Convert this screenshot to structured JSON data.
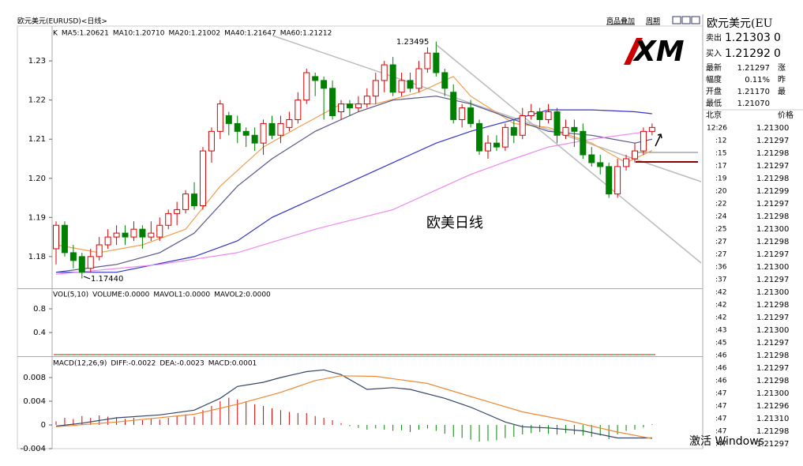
{
  "window": {
    "title": "欧元美元(EURUSD)<日线>",
    "links": [
      "商品叠加",
      "周期"
    ],
    "watermark": "激活 Windows",
    "logo_text": "XM"
  },
  "main_chart": {
    "legend": [
      {
        "text": "K",
        "color": "#000000"
      },
      {
        "text": "MA5:1.20621",
        "color": "#333355"
      },
      {
        "text": "MA10:1.20710",
        "color": "#f0a050"
      },
      {
        "text": "MA20:1.21002",
        "color": "#555588"
      },
      {
        "text": "MA40:1.21647",
        "color": "#3333cc"
      },
      {
        "text": "MA60:1.21212",
        "color": "#ee88ee"
      }
    ],
    "ylim": [
      1.1719,
      1.2385
    ],
    "yticks": [
      1.23,
      1.22,
      1.21,
      {
        "value": 1.2,
        "label": "1.20"
      },
      1.19,
      1.18
    ],
    "up_color": "#dd0000",
    "down_color": "#008000",
    "candles": [
      [
        1.182,
        1.189,
        1.178,
        1.188
      ],
      [
        1.188,
        1.189,
        1.18,
        1.181
      ],
      [
        1.181,
        1.183,
        1.177,
        1.179
      ],
      [
        1.18,
        1.181,
        1.1744,
        1.176
      ],
      [
        1.177,
        1.182,
        1.176,
        1.18
      ],
      [
        1.18,
        1.185,
        1.179,
        1.183
      ],
      [
        1.183,
        1.187,
        1.182,
        1.185
      ],
      [
        1.185,
        1.188,
        1.183,
        1.186
      ],
      [
        1.186,
        1.188,
        1.183,
        1.185
      ],
      [
        1.185,
        1.189,
        1.184,
        1.187
      ],
      [
        1.187,
        1.188,
        1.182,
        1.185
      ],
      [
        1.185,
        1.189,
        1.184,
        1.186
      ],
      [
        1.185,
        1.19,
        1.184,
        1.188
      ],
      [
        1.188,
        1.192,
        1.187,
        1.191
      ],
      [
        1.191,
        1.194,
        1.188,
        1.192
      ],
      [
        1.192,
        1.197,
        1.191,
        1.196
      ],
      [
        1.196,
        1.199,
        1.192,
        1.193
      ],
      [
        1.193,
        1.208,
        1.192,
        1.207
      ],
      [
        1.207,
        1.213,
        1.204,
        1.212
      ],
      [
        1.212,
        1.22,
        1.21,
        1.219
      ],
      [
        1.216,
        1.217,
        1.211,
        1.214
      ],
      [
        1.214,
        1.216,
        1.209,
        1.212
      ],
      [
        1.212,
        1.213,
        1.208,
        1.211
      ],
      [
        1.211,
        1.213,
        1.207,
        1.209
      ],
      [
        1.209,
        1.215,
        1.206,
        1.214
      ],
      [
        1.214,
        1.216,
        1.21,
        1.211
      ],
      [
        1.211,
        1.216,
        1.209,
        1.214
      ],
      [
        1.213,
        1.217,
        1.212,
        1.215
      ],
      [
        1.215,
        1.222,
        1.214,
        1.22
      ],
      [
        1.22,
        1.228,
        1.219,
        1.227
      ],
      [
        1.226,
        1.227,
        1.221,
        1.225
      ],
      [
        1.225,
        1.226,
        1.215,
        1.223
      ],
      [
        1.223,
        1.225,
        1.215,
        1.216
      ],
      [
        1.217,
        1.22,
        1.215,
        1.219
      ],
      [
        1.219,
        1.22,
        1.216,
        1.218
      ],
      [
        1.218,
        1.221,
        1.217,
        1.219
      ],
      [
        1.219,
        1.223,
        1.218,
        1.221
      ],
      [
        1.221,
        1.227,
        1.219,
        1.225
      ],
      [
        1.225,
        1.23,
        1.222,
        1.229
      ],
      [
        1.229,
        1.231,
        1.221,
        1.222
      ],
      [
        1.222,
        1.227,
        1.221,
        1.225
      ],
      [
        1.225,
        1.227,
        1.222,
        1.223
      ],
      [
        1.223,
        1.23,
        1.222,
        1.228
      ],
      [
        1.228,
        1.2335,
        1.227,
        1.232
      ],
      [
        1.232,
        1.23495,
        1.226,
        1.227
      ],
      [
        1.227,
        1.228,
        1.221,
        1.223
      ],
      [
        1.222,
        1.224,
        1.214,
        1.215
      ],
      [
        1.215,
        1.219,
        1.213,
        1.218
      ],
      [
        1.218,
        1.22,
        1.213,
        1.214
      ],
      [
        1.214,
        1.215,
        1.206,
        1.207
      ],
      [
        1.207,
        1.211,
        1.205,
        1.209
      ],
      [
        1.209,
        1.211,
        1.207,
        1.208
      ],
      [
        1.208,
        1.214,
        1.207,
        1.213
      ],
      [
        1.213,
        1.215,
        1.209,
        1.211
      ],
      [
        1.211,
        1.218,
        1.21,
        1.216
      ],
      [
        1.216,
        1.219,
        1.215,
        1.217
      ],
      [
        1.217,
        1.218,
        1.213,
        1.215
      ],
      [
        1.215,
        1.219,
        1.214,
        1.217
      ],
      [
        1.217,
        1.218,
        1.209,
        1.211
      ],
      [
        1.211,
        1.215,
        1.21,
        1.213
      ],
      [
        1.213,
        1.215,
        1.208,
        1.212
      ],
      [
        1.212,
        1.214,
        1.205,
        1.206
      ],
      [
        1.206,
        1.208,
        1.203,
        1.204
      ],
      [
        1.204,
        1.206,
        1.201,
        1.203
      ],
      [
        1.203,
        1.204,
        1.195,
        1.196
      ],
      [
        1.196,
        1.205,
        1.195,
        1.203
      ],
      [
        1.203,
        1.206,
        1.202,
        1.205
      ],
      [
        1.205,
        1.209,
        1.204,
        1.207
      ],
      [
        1.207,
        1.213,
        1.206,
        1.212
      ],
      [
        1.212,
        1.214,
        1.211,
        1.213
      ]
    ],
    "ma_lines": [
      {
        "color": "#f0a050",
        "x": [
          0,
          5,
          10,
          15,
          19,
          24,
          28,
          33,
          37,
          42,
          46,
          48,
          53,
          57,
          62,
          66,
          69
        ],
        "values": [
          1.183,
          1.181,
          1.183,
          1.187,
          1.198,
          1.208,
          1.213,
          1.219,
          1.219,
          1.222,
          1.226,
          1.221,
          1.214,
          1.213,
          1.209,
          1.204,
          1.2071
        ]
      },
      {
        "color": "#555588",
        "x": [
          0,
          7,
          12,
          16,
          21,
          25,
          30,
          35,
          39,
          44,
          48,
          53,
          57,
          62,
          67,
          69
        ],
        "values": [
          1.176,
          1.178,
          1.181,
          1.186,
          1.198,
          1.205,
          1.212,
          1.217,
          1.22,
          1.221,
          1.219,
          1.215,
          1.212,
          1.211,
          1.209,
          1.21
        ]
      },
      {
        "color": "#3333cc",
        "x": [
          0,
          7,
          16,
          21,
          25,
          30,
          35,
          39,
          44,
          48,
          53,
          57,
          62,
          67,
          69
        ],
        "values": [
          1.176,
          1.176,
          1.18,
          1.184,
          1.19,
          1.195,
          1.2,
          1.204,
          1.209,
          1.212,
          1.215,
          1.2175,
          1.2175,
          1.217,
          1.2165
        ]
      },
      {
        "color": "#ee88ee",
        "x": [
          0,
          12,
          21,
          30,
          39,
          44,
          48,
          53,
          57,
          62,
          67,
          69
        ],
        "values": [
          1.1755,
          1.178,
          1.181,
          1.187,
          1.192,
          1.197,
          1.201,
          1.205,
          1.208,
          1.21,
          1.2115,
          1.2121
        ]
      }
    ],
    "annotations": [
      "1.23495",
      "1.17440",
      "欧美日线"
    ]
  },
  "volume_panel": {
    "legend": [
      {
        "text": "VOL(5,10)",
        "color": "#000000"
      },
      {
        "text": "VOLUME:0.0000",
        "color": "#000000"
      },
      {
        "text": "MAVOL1:0.0000",
        "color": "#000080"
      },
      {
        "text": "MAVOL2:0.0000",
        "color": "#f0a050"
      }
    ],
    "ylim": [
      0,
      1.1333
    ],
    "yticks": [
      0.8,
      0.4
    ]
  },
  "macd_panel": {
    "legend": [
      {
        "text": "MACD(12,26,9)",
        "color": "#000000"
      },
      {
        "text": "DIFF:-0.0022",
        "color": "#334466"
      },
      {
        "text": "DEA:-0.0023",
        "color": "#ee8833"
      },
      {
        "text": "MACD:0.0001",
        "color": "#000000"
      }
    ],
    "ylim": [
      -0.004,
      0.01147
    ],
    "yticks": [
      0.008,
      0.004,
      0,
      -0.004
    ],
    "histogram": [
      0.0006,
      0.0012,
      0.001,
      0.0015,
      0.0012,
      0.0016,
      0.0014,
      0.0013,
      0.001,
      0.0012,
      0.0008,
      0.001,
      0.0009,
      0.0012,
      0.0015,
      0.0018,
      0.0014,
      0.0025,
      0.0032,
      0.004,
      0.0046,
      0.0043,
      0.004,
      0.0035,
      0.0032,
      0.0028,
      0.0025,
      0.0022,
      0.002,
      0.002,
      0.0015,
      0.0012,
      0.0008,
      0.0003,
      -0.0002,
      -0.0005,
      -0.0008,
      -0.0006,
      -0.0008,
      -0.001,
      -0.0009,
      -0.0012,
      -0.0008,
      -0.0006,
      -0.001,
      -0.0015,
      -0.002,
      -0.0022,
      -0.0025,
      -0.0028,
      -0.0027,
      -0.0026,
      -0.0022,
      -0.002,
      -0.0016,
      -0.0014,
      -0.0012,
      -0.0015,
      -0.0016,
      -0.0014,
      -0.0016,
      -0.0018,
      -0.002,
      -0.0018,
      -0.0024,
      -0.0016,
      -0.001,
      -0.0008,
      -0.0004,
      0.0001
    ],
    "lines": [
      {
        "color": "#334466",
        "x": [
          0,
          3,
          7,
          12,
          16,
          19,
          21,
          24,
          26,
          29,
          31,
          33,
          36,
          39,
          41,
          45,
          48,
          52,
          54,
          57,
          61,
          65,
          69
        ],
        "values": [
          -0.0002,
          0.0003,
          0.0012,
          0.0017,
          0.0025,
          0.0045,
          0.0065,
          0.0072,
          0.008,
          0.009,
          0.0093,
          0.0085,
          0.006,
          0.0063,
          0.006,
          0.0045,
          0.003,
          0.0005,
          -0.0003,
          -0.0005,
          -0.001,
          -0.0022,
          -0.0022
        ]
      },
      {
        "color": "#ee8833",
        "x": [
          0,
          7,
          16,
          21,
          26,
          30,
          33,
          37,
          43,
          48,
          54,
          59,
          65,
          69
        ],
        "values": [
          -0.0003,
          0.0005,
          0.0018,
          0.0035,
          0.0055,
          0.0075,
          0.0083,
          0.0082,
          0.007,
          0.0048,
          0.0022,
          0.0008,
          -0.0012,
          -0.0023
        ]
      }
    ]
  },
  "quote": {
    "title": "欧元美元(EU",
    "rows": [
      [
        "卖出",
        "1.21303",
        "0"
      ],
      [
        "买入",
        "1.21292",
        "0"
      ],
      [
        "最新",
        "1.21297",
        "涨"
      ],
      [
        "幅度",
        "0.11%",
        "昨"
      ],
      [
        "开盘",
        "1.21170",
        "最"
      ],
      [
        "最低",
        "1.21070",
        ""
      ]
    ],
    "header": [
      "北京",
      "价格"
    ],
    "ticks": [
      [
        "12:26",
        "1.21300"
      ],
      [
        ":12",
        "1.21297"
      ],
      [
        ":15",
        "1.21298"
      ],
      [
        ":17",
        "1.21297"
      ],
      [
        ":19",
        "1.21298"
      ],
      [
        ":20",
        "1.21299"
      ],
      [
        ":22",
        "1.21297"
      ],
      [
        ":24",
        "1.21298"
      ],
      [
        ":25",
        "1.21300"
      ],
      [
        ":27",
        "1.21298"
      ],
      [
        ":27",
        "1.21297"
      ],
      [
        ":36",
        "1.21300"
      ],
      [
        ":37",
        "1.21297"
      ],
      [
        ":42",
        "1.21300"
      ],
      [
        ":42",
        "1.21298"
      ],
      [
        ":42",
        "1.21297"
      ],
      [
        ":43",
        "1.21300"
      ],
      [
        ":45",
        "1.21297"
      ],
      [
        ":46",
        "1.21298"
      ],
      [
        ":46",
        "1.21297"
      ],
      [
        ":46",
        "1.21298"
      ],
      [
        ":47",
        "1.21300"
      ],
      [
        ":47",
        "1.21296"
      ],
      [
        ":47",
        "1.21310"
      ],
      [
        ":47",
        "1.21298"
      ],
      [
        ":47",
        "1.21297"
      ]
    ]
  }
}
